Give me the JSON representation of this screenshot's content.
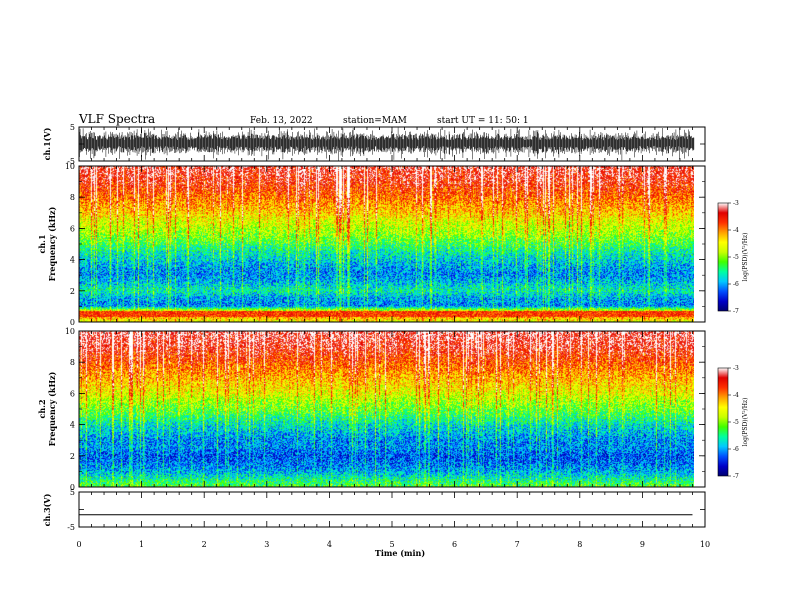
{
  "header": {
    "title": "VLF Spectra",
    "date": "Feb. 13, 2022",
    "station": "station=MAM",
    "start": "start UT =   11: 50: 1"
  },
  "colors": {
    "colormap": [
      "#000070",
      "#0000c8",
      "#0050ff",
      "#00c8ff",
      "#00ffa0",
      "#40ff00",
      "#c8ff00",
      "#ffff00",
      "#ffa000",
      "#ff3000",
      "#e00000",
      "#ffffff"
    ]
  },
  "chart_data": [
    {
      "type": "line",
      "name": "waveform-ch1",
      "ylabel": "ch.1(V)",
      "ylim": [
        -5,
        5
      ],
      "yticks": [
        "5",
        "-5"
      ],
      "xlim": [
        0,
        10
      ],
      "note_values": "dense impulsive waveform reaching about ±5 V throughout"
    },
    {
      "type": "heatmap",
      "ylabel": "ch.1\nFrequency (kHz)",
      "ylim": [
        0,
        10
      ],
      "yticks": [
        "0",
        "2",
        "4",
        "6",
        "8",
        "10"
      ],
      "xlim": [
        0,
        9.83
      ],
      "colorbar": {
        "label": "log(PSD)(V²/Hz)",
        "range": [
          -7,
          -3
        ],
        "ticks": [
          "-3",
          "-4",
          "-5",
          "-6",
          "-7"
        ]
      },
      "profile_freq_khz": [
        0,
        0.5,
        1,
        1.5,
        2,
        2.5,
        3,
        3.5,
        4,
        4.5,
        5,
        5.5,
        6,
        6.5,
        7,
        7.5,
        8,
        8.5,
        9,
        9.5,
        10
      ],
      "profile_logpsd": [
        -4.6,
        -3.8,
        -6.1,
        -6.0,
        -5.6,
        -5.9,
        -6.1,
        -6.0,
        -5.8,
        -5.6,
        -5.3,
        -5.0,
        -4.8,
        -4.6,
        -4.3,
        -4.1,
        -3.9,
        -3.7,
        -3.5,
        -3.4,
        -3.3
      ]
    },
    {
      "type": "heatmap",
      "ylabel": "ch.2\nFrequency (kHz)",
      "ylim": [
        0,
        10
      ],
      "yticks": [
        "0",
        "2",
        "4",
        "6",
        "8",
        "10"
      ],
      "xlim": [
        0,
        9.83
      ],
      "colorbar": {
        "label": "log(PSD)(V²/Hz)",
        "range": [
          -7,
          -3
        ],
        "ticks": [
          "-3",
          "-4",
          "-5",
          "-6",
          "-7"
        ]
      },
      "profile_freq_khz": [
        0,
        0.5,
        1,
        1.5,
        2,
        2.5,
        3,
        3.5,
        4,
        4.5,
        5,
        5.5,
        6,
        6.5,
        7,
        7.5,
        8,
        8.5,
        9,
        9.5,
        10
      ],
      "profile_logpsd": [
        -5.2,
        -5.6,
        -6.0,
        -6.2,
        -6.3,
        -6.1,
        -6.1,
        -5.9,
        -5.7,
        -5.4,
        -5.1,
        -4.9,
        -4.6,
        -4.4,
        -4.2,
        -4.0,
        -3.8,
        -3.6,
        -3.4,
        -3.3,
        -3.2
      ]
    },
    {
      "type": "line",
      "name": "waveform-ch3",
      "ylabel": "ch.3(V)",
      "ylim": [
        -5,
        5
      ],
      "yticks": [
        "5",
        "-5"
      ],
      "x": [
        0,
        9.8
      ],
      "y": [
        -1.5,
        -1.5
      ],
      "xlabel": "Time (min)",
      "xlim": [
        0,
        10
      ],
      "xticks": [
        "0",
        "1",
        "2",
        "3",
        "4",
        "5",
        "6",
        "7",
        "8",
        "9",
        "10"
      ]
    }
  ]
}
